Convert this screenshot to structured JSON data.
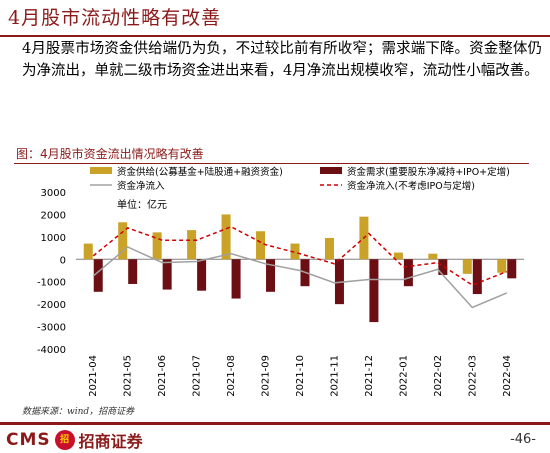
{
  "header": {
    "title": "4月股市流动性略有改善",
    "description": "4月股票市场资金供给端仍为负，不过较比前有所收窄；需求端下降。资金整体仍为净流出，单就二级市场资金进出来看，4月净流出规模收窄，流动性小幅改善。"
  },
  "figure": {
    "label": "图：4月股市资金流出情况略有改善",
    "source": "数据来源：wind，招商证券"
  },
  "footer": {
    "logo_text": "CMS",
    "logo_badge": "招",
    "logo_cn": "招商证券",
    "page_number": "-46-"
  },
  "chart_data": {
    "type": "bar",
    "unit_label": "单位：亿元",
    "categories": [
      "2021-04",
      "2021-05",
      "2021-06",
      "2021-07",
      "2021-08",
      "2021-09",
      "2021-10",
      "2021-11",
      "2021-12",
      "2022-01",
      "2022-02",
      "2022-03",
      "2022-04"
    ],
    "ylim": [
      -4000,
      3000
    ],
    "yticks": [
      -4000,
      -3000,
      -2000,
      -1000,
      0,
      1000,
      2000,
      3000
    ],
    "series": [
      {
        "name": "资金供给(公募基金+陆股通+融资资金)",
        "kind": "bar",
        "color": "#C9A227",
        "values": [
          700,
          1650,
          1200,
          1300,
          2000,
          1250,
          700,
          950,
          1900,
          300,
          250,
          -650,
          -600
        ]
      },
      {
        "name": "资金需求(重要股东净减持+IPO+定增)",
        "kind": "bar",
        "color": "#6B0F14",
        "values": [
          -1450,
          -1100,
          -1350,
          -1400,
          -1750,
          -1450,
          -1200,
          -2000,
          -2800,
          -1200,
          -700,
          -1550,
          -850
        ]
      },
      {
        "name": "资金净流入",
        "kind": "line",
        "color": "#A0A0A0",
        "values": [
          -750,
          550,
          -150,
          -100,
          250,
          -200,
          -500,
          -1050,
          -900,
          -900,
          -450,
          -2150,
          -1500
        ]
      },
      {
        "name": "资金净流入(不考虑IPO与定增)",
        "kind": "line-dashed",
        "color": "#D00000",
        "values": [
          150,
          1400,
          850,
          850,
          1450,
          650,
          250,
          -200,
          1150,
          -350,
          -150,
          -1150,
          -550
        ]
      }
    ]
  }
}
